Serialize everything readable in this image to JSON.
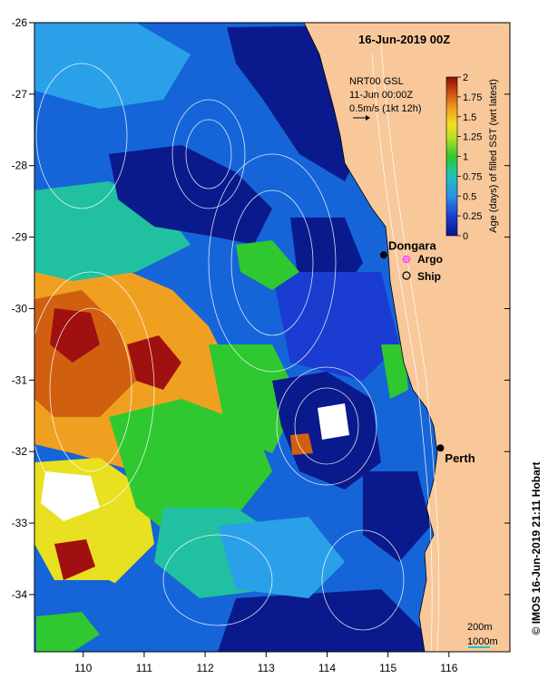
{
  "title": "16-Jun-2019 00Z",
  "info": {
    "line1": "NRT00 GSL",
    "line2": "11-Jun 00:00Z",
    "line3": "0.5m/s (1kt 12h)"
  },
  "colorbar": {
    "label": "Age (days) of filled SST (wrt latest)",
    "ticks": [
      "2",
      "1.75",
      "1.5",
      "1.25",
      "1",
      "0.75",
      "0.5",
      "0.25",
      "0"
    ]
  },
  "cities": [
    {
      "name": "Dongara",
      "lon": 114.93,
      "lat": -29.25
    },
    {
      "name": "Perth",
      "lon": 115.86,
      "lat": -31.95
    }
  ],
  "legend": {
    "argo": "Argo",
    "ship": "Ship"
  },
  "scale": {
    "depth1": "200m",
    "depth2": "1000m"
  },
  "credit": "© IMOS 16-Jun-2019 21:11 Hobart",
  "axes": {
    "lon_ticks": [
      "110",
      "111",
      "112",
      "113",
      "114",
      "115",
      "116"
    ],
    "lat_ticks": [
      "-26",
      "-27",
      "-28",
      "-29",
      "-30",
      "-31",
      "-32",
      "-33",
      "-34"
    ],
    "lon_range": [
      109.2,
      117.0
    ],
    "lat_range": [
      -34.8,
      -26.0
    ]
  },
  "colors": {
    "land": "#f8c89b",
    "ocean_deep": "#0a1a8c",
    "ocean_mid": "#1565d8",
    "ocean_light": "#2aa0e8",
    "teal": "#20c0a0",
    "green": "#30c830",
    "yellow": "#e8e020",
    "orange": "#f0a020",
    "dark_orange": "#d06010",
    "red": "#a01010",
    "argo": "#ff40ff",
    "scale_line": "#20c0d0"
  }
}
